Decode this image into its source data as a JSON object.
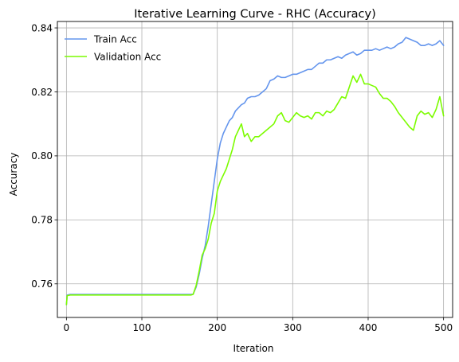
{
  "chart_data": {
    "type": "line",
    "title": "Iterative Learning Curve - RHC (Accuracy)",
    "xlabel": "Iteration",
    "ylabel": "Accuracy",
    "xlim": [
      -12,
      512
    ],
    "ylim": [
      0.7495,
      0.842
    ],
    "xticks": [
      0,
      100,
      200,
      300,
      400,
      500
    ],
    "yticks": [
      0.76,
      0.78,
      0.8,
      0.82,
      0.84
    ],
    "ytick_labels": [
      "0.76",
      "0.78",
      "0.80",
      "0.82",
      "0.84"
    ],
    "grid": true,
    "legend_position": "top-left",
    "series": [
      {
        "name": "Train Acc",
        "color": "#6495ed",
        "x": [
          0,
          1,
          5,
          20,
          50,
          100,
          150,
          165,
          168,
          172,
          176,
          180,
          184,
          188,
          192,
          196,
          200,
          204,
          208,
          212,
          216,
          220,
          224,
          228,
          232,
          236,
          240,
          245,
          250,
          255,
          260,
          265,
          270,
          275,
          280,
          285,
          290,
          295,
          300,
          305,
          310,
          315,
          320,
          325,
          330,
          335,
          340,
          345,
          350,
          355,
          360,
          365,
          370,
          375,
          380,
          385,
          390,
          395,
          400,
          405,
          410,
          415,
          420,
          425,
          430,
          435,
          440,
          445,
          450,
          455,
          460,
          465,
          470,
          475,
          480,
          485,
          490,
          495,
          500
        ],
        "y": [
          0.7535,
          0.7565,
          0.7567,
          0.7567,
          0.7567,
          0.7567,
          0.7567,
          0.7567,
          0.7568,
          0.759,
          0.763,
          0.768,
          0.772,
          0.778,
          0.785,
          0.792,
          0.799,
          0.804,
          0.807,
          0.809,
          0.811,
          0.812,
          0.814,
          0.815,
          0.816,
          0.8165,
          0.818,
          0.8185,
          0.8185,
          0.819,
          0.82,
          0.821,
          0.8235,
          0.824,
          0.825,
          0.8245,
          0.8245,
          0.825,
          0.8255,
          0.8255,
          0.826,
          0.8265,
          0.827,
          0.827,
          0.828,
          0.829,
          0.829,
          0.83,
          0.83,
          0.8305,
          0.831,
          0.8305,
          0.8315,
          0.832,
          0.8325,
          0.8315,
          0.832,
          0.833,
          0.833,
          0.833,
          0.8335,
          0.833,
          0.8335,
          0.834,
          0.8335,
          0.834,
          0.835,
          0.8355,
          0.837,
          0.8365,
          0.836,
          0.8355,
          0.8345,
          0.8345,
          0.835,
          0.8345,
          0.835,
          0.836,
          0.8345
        ]
      },
      {
        "name": "Validation Acc",
        "color": "#7cfc00",
        "x": [
          0,
          1,
          5,
          20,
          50,
          100,
          150,
          165,
          168,
          172,
          176,
          180,
          184,
          188,
          192,
          196,
          200,
          204,
          208,
          212,
          216,
          220,
          224,
          228,
          232,
          236,
          240,
          245,
          250,
          255,
          260,
          265,
          270,
          275,
          280,
          285,
          290,
          295,
          300,
          305,
          310,
          315,
          320,
          325,
          330,
          335,
          340,
          345,
          350,
          355,
          360,
          365,
          370,
          375,
          380,
          385,
          390,
          395,
          400,
          405,
          410,
          415,
          420,
          425,
          430,
          435,
          440,
          445,
          450,
          455,
          460,
          465,
          470,
          475,
          480,
          485,
          490,
          495,
          500
        ],
        "y": [
          0.7535,
          0.7563,
          0.7565,
          0.7565,
          0.7565,
          0.7565,
          0.7565,
          0.7565,
          0.7567,
          0.7595,
          0.764,
          0.769,
          0.771,
          0.774,
          0.779,
          0.782,
          0.789,
          0.792,
          0.794,
          0.796,
          0.799,
          0.802,
          0.806,
          0.808,
          0.81,
          0.806,
          0.807,
          0.8045,
          0.806,
          0.806,
          0.807,
          0.808,
          0.809,
          0.81,
          0.8125,
          0.8135,
          0.811,
          0.8105,
          0.812,
          0.8135,
          0.8125,
          0.812,
          0.8125,
          0.8115,
          0.8135,
          0.8135,
          0.8125,
          0.814,
          0.8135,
          0.8145,
          0.8165,
          0.8185,
          0.818,
          0.8215,
          0.825,
          0.823,
          0.8255,
          0.8225,
          0.8225,
          0.822,
          0.8215,
          0.8195,
          0.818,
          0.818,
          0.817,
          0.8155,
          0.8135,
          0.812,
          0.8105,
          0.809,
          0.808,
          0.8125,
          0.814,
          0.813,
          0.8135,
          0.812,
          0.8145,
          0.8185,
          0.8125
        ]
      }
    ]
  }
}
